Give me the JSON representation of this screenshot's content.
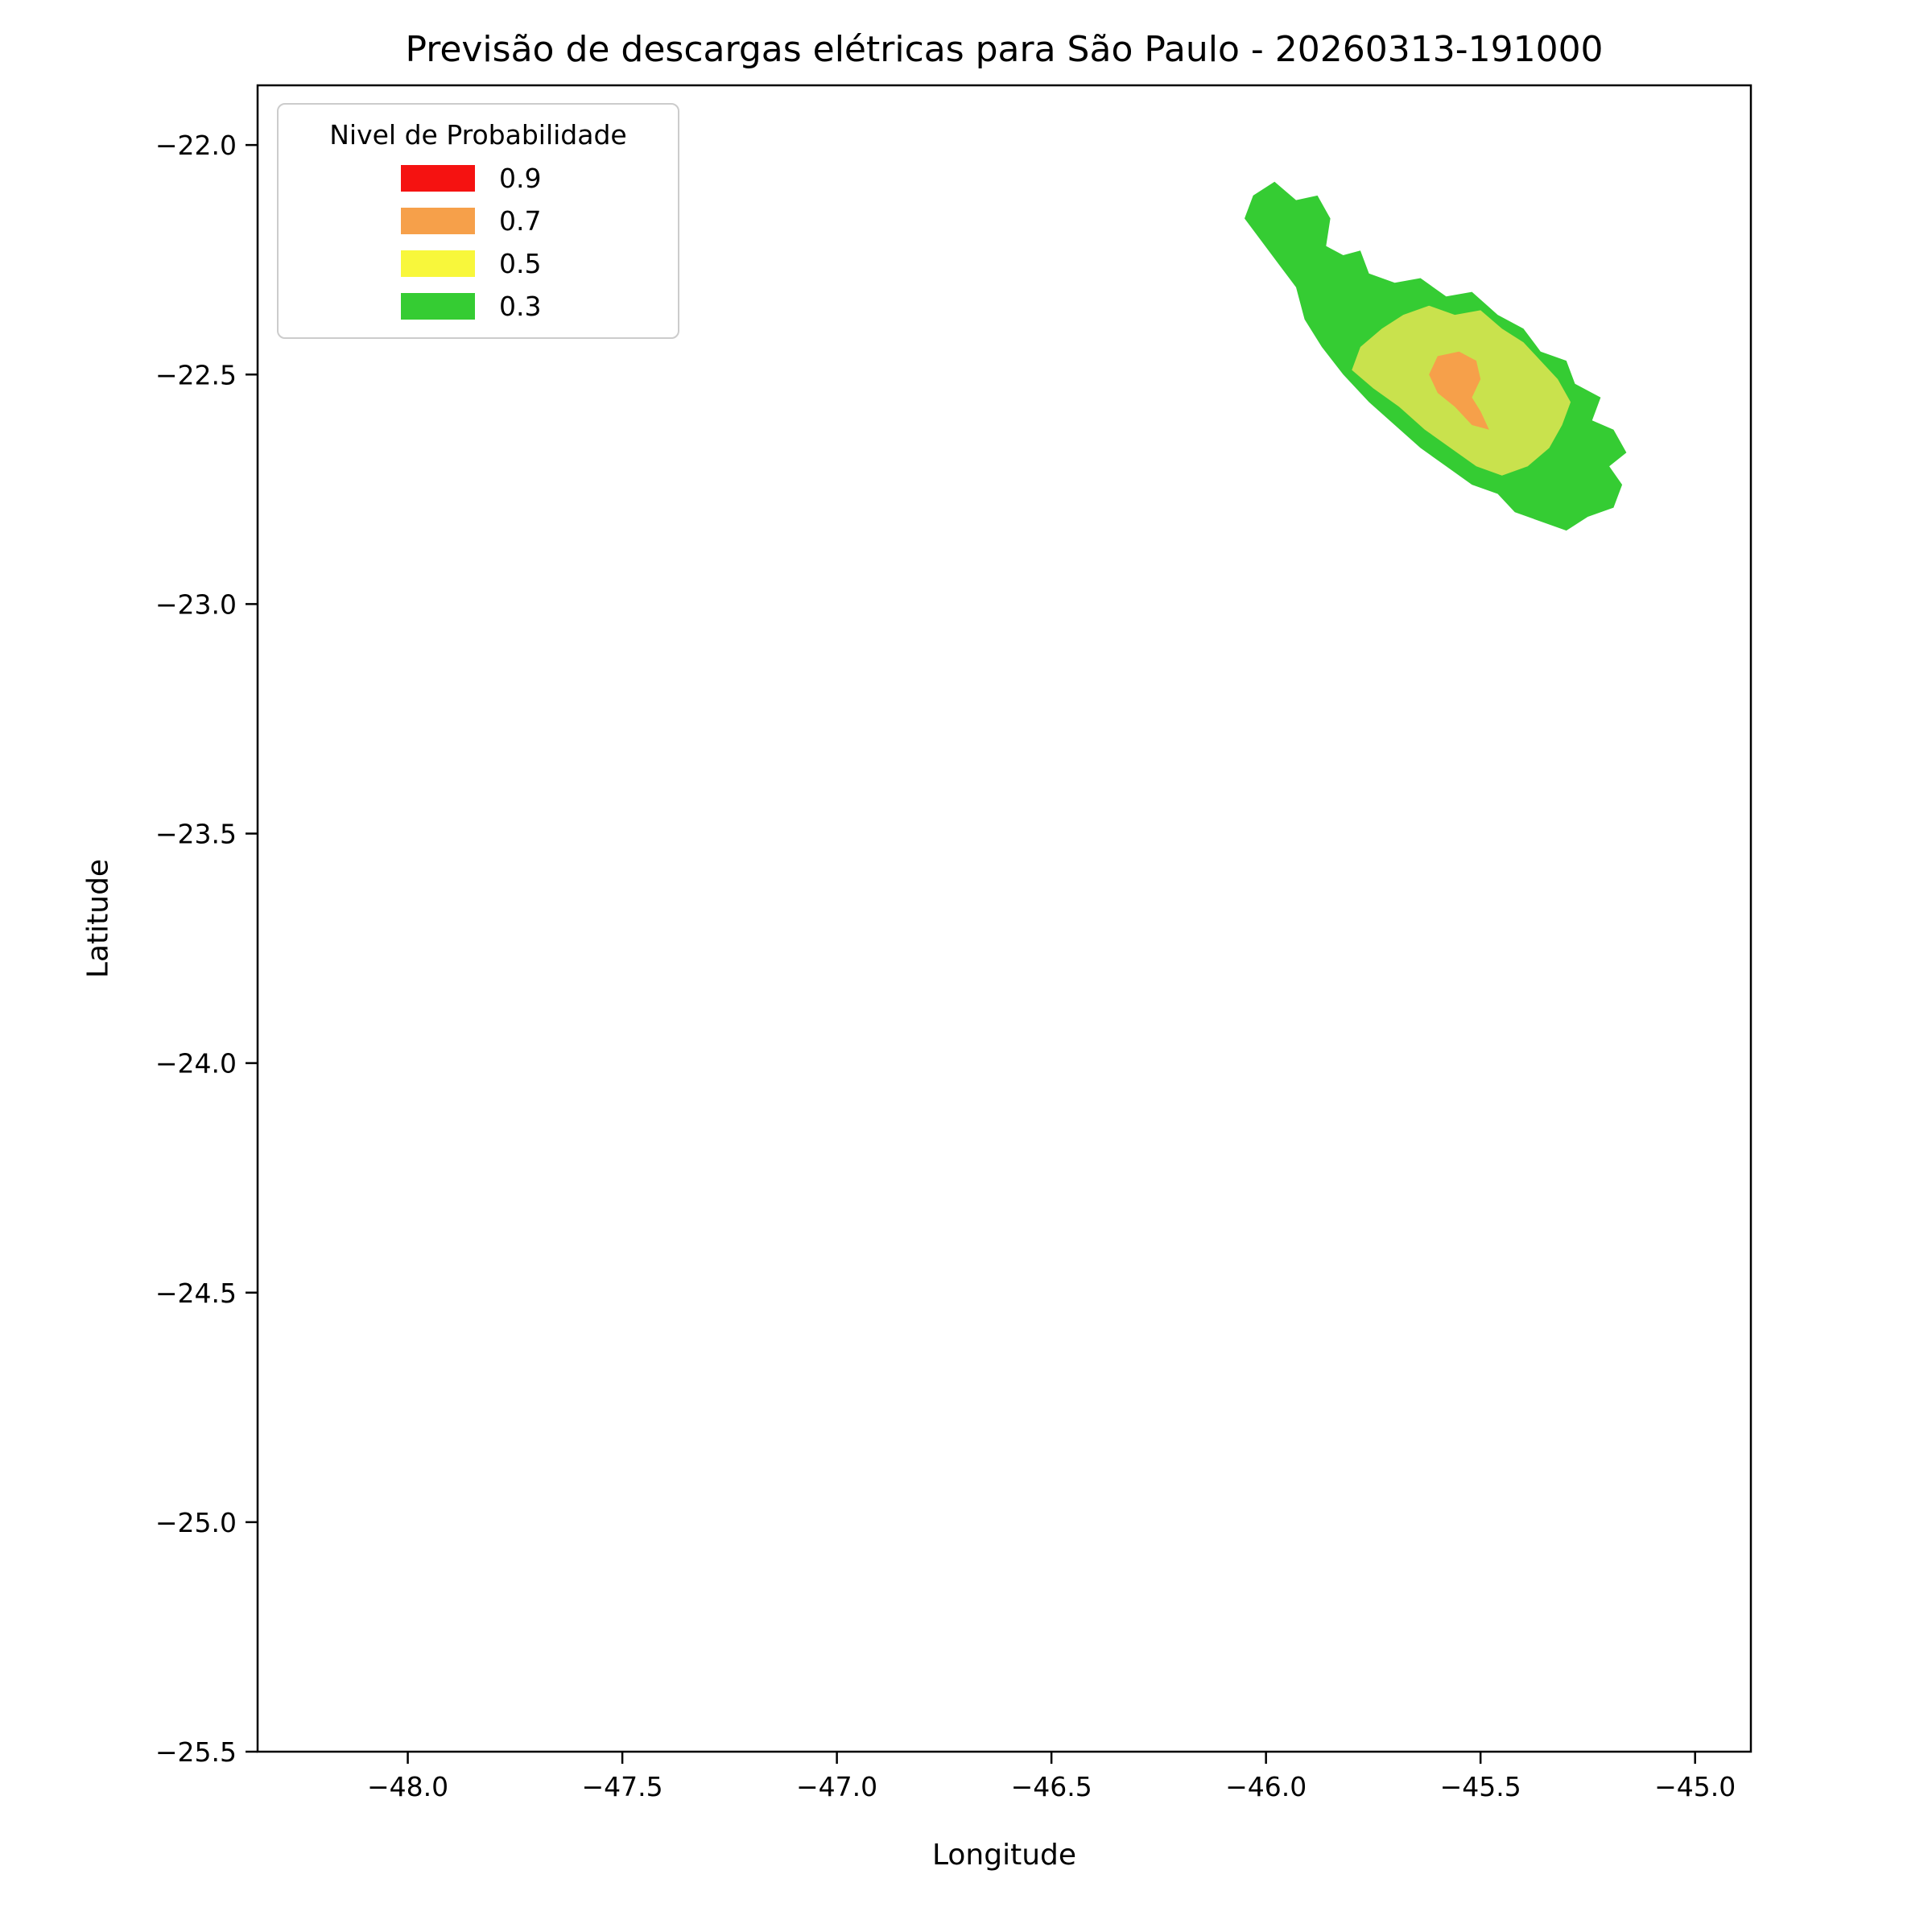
{
  "chart_data": {
    "type": "area",
    "title": "Previsão de descargas elétricas para São Paulo - 20260313-191000",
    "xlabel": "Longitude",
    "ylabel": "Latitude",
    "xlim": [
      -48.35,
      -44.87
    ],
    "ylim": [
      -25.5,
      -21.87
    ],
    "grid": false,
    "x_ticks": [
      -48.0,
      -47.5,
      -47.0,
      -46.5,
      -46.0,
      -45.5,
      -45.0
    ],
    "x_tick_labels": [
      "−48.0",
      "−47.5",
      "−47.0",
      "−46.5",
      "−46.0",
      "−45.5",
      "−45.0"
    ],
    "y_ticks": [
      -22.0,
      -22.5,
      -23.0,
      -23.5,
      -24.0,
      -24.5,
      -25.0,
      -25.5
    ],
    "y_tick_labels": [
      "−22.0",
      "−22.5",
      "−23.0",
      "−23.5",
      "−24.0",
      "−24.5",
      "−25.0",
      "−25.5"
    ],
    "legend": {
      "title": "Nivel de Probabilidade",
      "position": "upper-left",
      "entries": [
        {
          "label": "0.9",
          "color": "#f51211"
        },
        {
          "label": "0.7",
          "color": "#f6a04a"
        },
        {
          "label": "0.5",
          "color": "#f8f73b"
        },
        {
          "label": "0.3",
          "color": "#35cc33"
        }
      ]
    },
    "contours": [
      {
        "level": 0.3,
        "color": "#35cc33",
        "points": [
          [
            -45.98,
            -22.08
          ],
          [
            -45.93,
            -22.12
          ],
          [
            -45.88,
            -22.11
          ],
          [
            -45.85,
            -22.16
          ],
          [
            -45.86,
            -22.22
          ],
          [
            -45.82,
            -22.24
          ],
          [
            -45.78,
            -22.23
          ],
          [
            -45.76,
            -22.28
          ],
          [
            -45.7,
            -22.3
          ],
          [
            -45.64,
            -22.29
          ],
          [
            -45.58,
            -22.33
          ],
          [
            -45.52,
            -22.32
          ],
          [
            -45.46,
            -22.37
          ],
          [
            -45.4,
            -22.4
          ],
          [
            -45.36,
            -22.45
          ],
          [
            -45.3,
            -22.47
          ],
          [
            -45.28,
            -22.52
          ],
          [
            -45.22,
            -22.55
          ],
          [
            -45.24,
            -22.6
          ],
          [
            -45.19,
            -22.62
          ],
          [
            -45.16,
            -22.67
          ],
          [
            -45.2,
            -22.7
          ],
          [
            -45.17,
            -22.74
          ],
          [
            -45.19,
            -22.79
          ],
          [
            -45.25,
            -22.81
          ],
          [
            -45.3,
            -22.84
          ],
          [
            -45.36,
            -22.82
          ],
          [
            -45.42,
            -22.8
          ],
          [
            -45.46,
            -22.76
          ],
          [
            -45.52,
            -22.74
          ],
          [
            -45.58,
            -22.7
          ],
          [
            -45.64,
            -22.66
          ],
          [
            -45.7,
            -22.61
          ],
          [
            -45.76,
            -22.56
          ],
          [
            -45.82,
            -22.5
          ],
          [
            -45.87,
            -22.44
          ],
          [
            -45.91,
            -22.38
          ],
          [
            -45.93,
            -22.31
          ],
          [
            -45.97,
            -22.26
          ],
          [
            -46.01,
            -22.21
          ],
          [
            -46.05,
            -22.16
          ],
          [
            -46.03,
            -22.11
          ]
        ]
      },
      {
        "level": 0.5,
        "color": "#c9e24d",
        "points": [
          [
            -45.8,
            -22.49
          ],
          [
            -45.78,
            -22.44
          ],
          [
            -45.73,
            -22.4
          ],
          [
            -45.68,
            -22.37
          ],
          [
            -45.62,
            -22.35
          ],
          [
            -45.56,
            -22.37
          ],
          [
            -45.5,
            -22.36
          ],
          [
            -45.45,
            -22.4
          ],
          [
            -45.4,
            -22.43
          ],
          [
            -45.36,
            -22.47
          ],
          [
            -45.32,
            -22.51
          ],
          [
            -45.29,
            -22.56
          ],
          [
            -45.31,
            -22.61
          ],
          [
            -45.34,
            -22.66
          ],
          [
            -45.39,
            -22.7
          ],
          [
            -45.45,
            -22.72
          ],
          [
            -45.51,
            -22.7
          ],
          [
            -45.57,
            -22.66
          ],
          [
            -45.63,
            -22.62
          ],
          [
            -45.69,
            -22.57
          ],
          [
            -45.75,
            -22.53
          ]
        ]
      },
      {
        "level": 0.7,
        "color": "#f6a04a",
        "points": [
          [
            -45.62,
            -22.5
          ],
          [
            -45.6,
            -22.46
          ],
          [
            -45.55,
            -22.45
          ],
          [
            -45.51,
            -22.47
          ],
          [
            -45.5,
            -22.51
          ],
          [
            -45.52,
            -22.55
          ],
          [
            -45.5,
            -22.58
          ],
          [
            -45.48,
            -22.62
          ],
          [
            -45.52,
            -22.61
          ],
          [
            -45.56,
            -22.57
          ],
          [
            -45.6,
            -22.54
          ]
        ]
      }
    ],
    "colors": {
      "axes_border": "#000000",
      "background": "#ffffff",
      "legend_border": "#cccccc"
    }
  }
}
